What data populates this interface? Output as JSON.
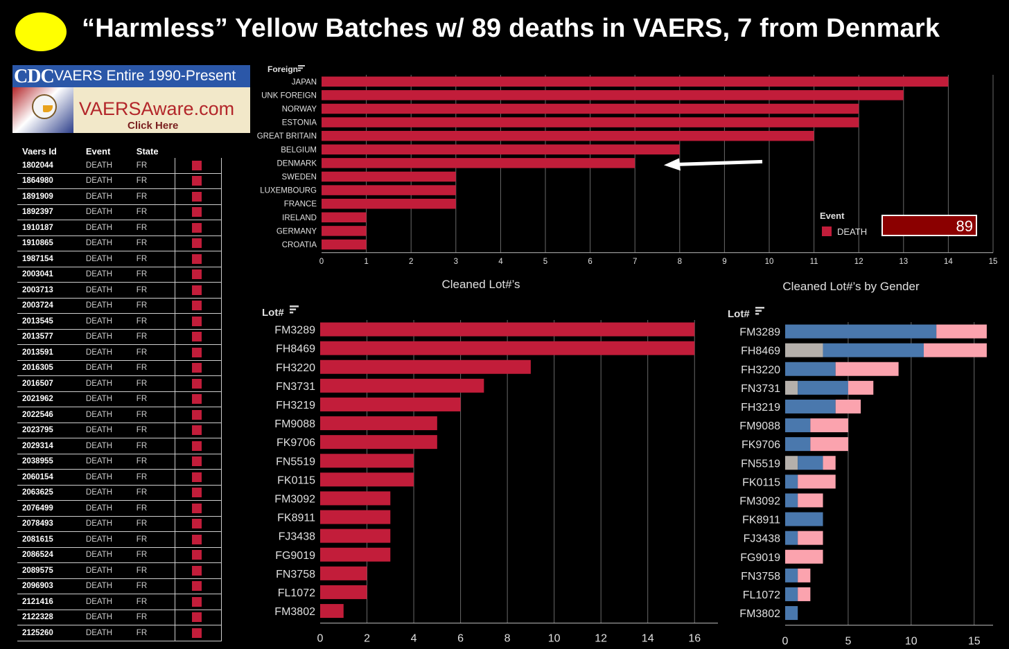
{
  "title": "“Harmless” Yellow Batches w/ 89 deaths in VAERS, 7 from Denmark",
  "banner": {
    "logo": "CDC",
    "subtitle": "VAERS Entire 1990-Present",
    "url": "VAERSAware.com",
    "cta": "Click Here",
    "eagle_caption": "Welcome Eagle"
  },
  "table": {
    "headers": [
      "Vaers Id",
      "Event",
      "State"
    ],
    "rows": [
      [
        "1802044",
        "DEATH",
        "FR"
      ],
      [
        "1864980",
        "DEATH",
        "FR"
      ],
      [
        "1891909",
        "DEATH",
        "FR"
      ],
      [
        "1892397",
        "DEATH",
        "FR"
      ],
      [
        "1910187",
        "DEATH",
        "FR"
      ],
      [
        "1910865",
        "DEATH",
        "FR"
      ],
      [
        "1987154",
        "DEATH",
        "FR"
      ],
      [
        "2003041",
        "DEATH",
        "FR"
      ],
      [
        "2003713",
        "DEATH",
        "FR"
      ],
      [
        "2003724",
        "DEATH",
        "FR"
      ],
      [
        "2013545",
        "DEATH",
        "FR"
      ],
      [
        "2013577",
        "DEATH",
        "FR"
      ],
      [
        "2013591",
        "DEATH",
        "FR"
      ],
      [
        "2016305",
        "DEATH",
        "FR"
      ],
      [
        "2016507",
        "DEATH",
        "FR"
      ],
      [
        "2021962",
        "DEATH",
        "FR"
      ],
      [
        "2022546",
        "DEATH",
        "FR"
      ],
      [
        "2023795",
        "DEATH",
        "FR"
      ],
      [
        "2029314",
        "DEATH",
        "FR"
      ],
      [
        "2038955",
        "DEATH",
        "FR"
      ],
      [
        "2060154",
        "DEATH",
        "FR"
      ],
      [
        "2063625",
        "DEATH",
        "FR"
      ],
      [
        "2076499",
        "DEATH",
        "FR"
      ],
      [
        "2078493",
        "DEATH",
        "FR"
      ],
      [
        "2081615",
        "DEATH",
        "FR"
      ],
      [
        "2086524",
        "DEATH",
        "FR"
      ],
      [
        "2089575",
        "DEATH",
        "FR"
      ],
      [
        "2096903",
        "DEATH",
        "FR"
      ],
      [
        "2121416",
        "DEATH",
        "FR"
      ],
      [
        "2122328",
        "DEATH",
        "FR"
      ],
      [
        "2125260",
        "DEATH",
        "FR"
      ]
    ]
  },
  "legend": {
    "title": "Event",
    "item": "DEATH",
    "total": "89"
  },
  "colors": {
    "death": "#c21d3a",
    "male": "#4a78ad",
    "female": "#fba3ae",
    "unknown": "#b5b0ab",
    "total_box": "#8b0000"
  },
  "chart_data": [
    {
      "type": "bar",
      "orientation": "horizontal",
      "dimension_label": "Foreign",
      "categories": [
        "JAPAN",
        "UNK FOREIGN",
        "NORWAY",
        "ESTONIA",
        "GREAT BRITAIN",
        "BELGIUM",
        "DENMARK",
        "SWEDEN",
        "LUXEMBOURG",
        "FRANCE",
        "IRELAND",
        "GERMANY",
        "CROATIA"
      ],
      "values": [
        14,
        13,
        12,
        12,
        11,
        8,
        7,
        3,
        3,
        3,
        1,
        1,
        1
      ],
      "xlim": [
        0,
        15
      ],
      "ticks": [
        0,
        1,
        2,
        3,
        4,
        5,
        6,
        7,
        8,
        9,
        10,
        11,
        12,
        13,
        14,
        15
      ],
      "grid": true,
      "annotation": "arrow pointing at DENMARK"
    },
    {
      "type": "bar",
      "orientation": "horizontal",
      "title": "Cleaned Lot#’s",
      "dimension_label": "Lot#",
      "categories": [
        "FM3289",
        "FH8469",
        "FH3220",
        "FN3731",
        "FH3219",
        "FM9088",
        "FK9706",
        "FN5519",
        "FK0115",
        "FM3092",
        "FK8911",
        "FJ3438",
        "FG9019",
        "FN3758",
        "FL1072",
        "FM3802"
      ],
      "values": [
        16,
        16,
        9,
        7,
        6,
        5,
        5,
        4,
        4,
        3,
        3,
        3,
        3,
        2,
        2,
        1
      ],
      "xlim": [
        0,
        17
      ],
      "ticks": [
        0,
        2,
        4,
        6,
        8,
        10,
        12,
        14,
        16
      ],
      "grid": true
    },
    {
      "type": "bar",
      "orientation": "horizontal",
      "stacked": true,
      "title": "Cleaned Lot#’s by Gender",
      "dimension_label": "Lot#",
      "categories": [
        "FM3289",
        "FH8469",
        "FH3220",
        "FN3731",
        "FH3219",
        "FM9088",
        "FK9706",
        "FN5519",
        "FK0115",
        "FM3092",
        "FK8911",
        "FJ3438",
        "FG9019",
        "FN3758",
        "FL1072",
        "FM3802"
      ],
      "series": [
        {
          "values": [
            0,
            3,
            0,
            1,
            0,
            0,
            0,
            1,
            0,
            0,
            0,
            0,
            0,
            0,
            0,
            0
          ],
          "color": "unknown"
        },
        {
          "values": [
            12,
            8,
            4,
            4,
            4,
            2,
            2,
            2,
            1,
            1,
            3,
            1,
            0,
            1,
            1,
            1
          ],
          "color": "male"
        },
        {
          "values": [
            4,
            5,
            5,
            2,
            2,
            3,
            3,
            1,
            3,
            2,
            0,
            2,
            3,
            1,
            1,
            0
          ],
          "color": "female"
        }
      ],
      "xlim": [
        0,
        16.5
      ],
      "ticks": [
        0,
        5,
        10,
        15
      ],
      "grid": true
    }
  ]
}
